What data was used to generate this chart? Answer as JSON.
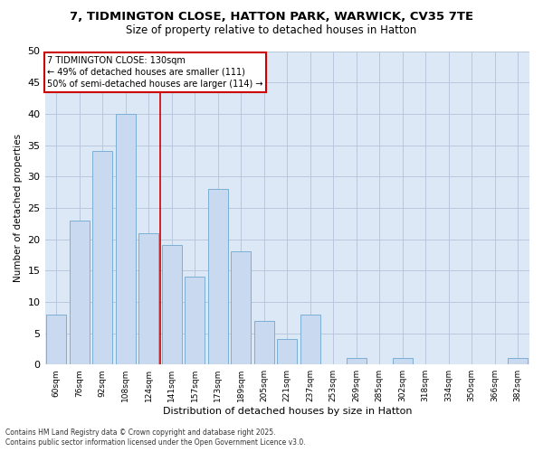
{
  "title": "7, TIDMINGTON CLOSE, HATTON PARK, WARWICK, CV35 7TE",
  "subtitle": "Size of property relative to detached houses in Hatton",
  "xlabel": "Distribution of detached houses by size in Hatton",
  "ylabel": "Number of detached properties",
  "categories": [
    "60sqm",
    "76sqm",
    "92sqm",
    "108sqm",
    "124sqm",
    "141sqm",
    "157sqm",
    "173sqm",
    "189sqm",
    "205sqm",
    "221sqm",
    "237sqm",
    "253sqm",
    "269sqm",
    "285sqm",
    "302sqm",
    "318sqm",
    "334sqm",
    "350sqm",
    "366sqm",
    "382sqm"
  ],
  "values": [
    8,
    23,
    34,
    40,
    21,
    19,
    14,
    28,
    18,
    7,
    4,
    8,
    0,
    1,
    0,
    1,
    0,
    0,
    0,
    0,
    1
  ],
  "bar_color": "#c9d9f0",
  "bar_edge_color": "#7bafd4",
  "grid_color": "#b8c8dc",
  "background_color": "#dce8f5",
  "ylim": [
    0,
    50
  ],
  "yticks": [
    0,
    5,
    10,
    15,
    20,
    25,
    30,
    35,
    40,
    45,
    50
  ],
  "property_line_x": 4.5,
  "annotation_title": "7 TIDMINGTON CLOSE: 130sqm",
  "annotation_line1": "← 49% of detached houses are smaller (111)",
  "annotation_line2": "50% of semi-detached houses are larger (114) →",
  "annotation_box_facecolor": "#ffffff",
  "annotation_box_edgecolor": "#cc0000",
  "vline_color": "#cc0000",
  "footer1": "Contains HM Land Registry data © Crown copyright and database right 2025.",
  "footer2": "Contains public sector information licensed under the Open Government Licence v3.0."
}
